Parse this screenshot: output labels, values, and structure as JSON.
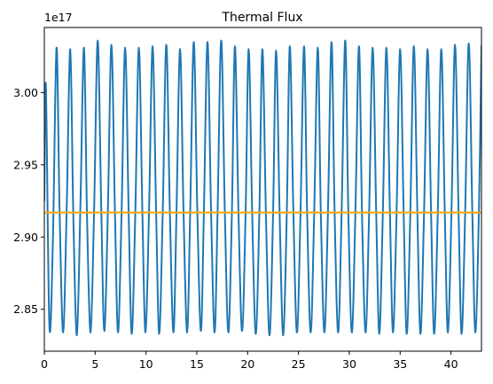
{
  "chart_data": {
    "type": "line",
    "title": "Thermal Flux",
    "xlabel": "",
    "ylabel": "",
    "y_offset_label": "1e17",
    "xlim": [
      0,
      43
    ],
    "ylim": [
      2.821,
      3.045
    ],
    "x_ticks": [
      0,
      5,
      10,
      15,
      20,
      25,
      30,
      35,
      40
    ],
    "x_tick_labels": [
      "0",
      "5",
      "10",
      "15",
      "20",
      "25",
      "30",
      "35",
      "40"
    ],
    "y_ticks": [
      2.85,
      2.9,
      2.95,
      3.0
    ],
    "y_tick_labels": [
      "2.85",
      "2.90",
      "2.95",
      "3.00"
    ],
    "grid": false,
    "series": [
      {
        "color": "#1f77b4",
        "x": [
          0.0,
          0.15,
          0.5,
          0.85,
          1.2,
          1.5,
          1.85,
          2.2,
          2.55,
          2.85,
          3.2,
          3.55,
          3.9,
          4.2,
          4.55,
          4.9,
          5.25,
          5.6,
          5.9,
          6.25,
          6.6,
          6.95,
          7.25,
          7.6,
          7.95,
          8.3,
          8.6,
          8.95,
          9.3,
          9.65,
          9.95,
          10.3,
          10.65,
          11.0,
          11.3,
          11.65,
          12.0,
          12.35,
          12.7,
          13.0,
          13.35,
          13.7,
          14.05,
          14.35,
          14.7,
          15.05,
          15.4,
          15.7,
          16.05,
          16.4,
          16.75,
          17.05,
          17.4,
          17.75,
          18.1,
          18.45,
          18.75,
          19.1,
          19.45,
          19.8,
          20.1,
          20.45,
          20.8,
          21.15,
          21.45,
          21.8,
          22.15,
          22.5,
          22.8,
          23.15,
          23.5,
          23.85,
          24.15,
          24.5,
          24.85,
          25.2,
          25.55,
          25.85,
          26.2,
          26.55,
          26.9,
          27.2,
          27.55,
          27.9,
          28.25,
          28.55,
          28.9,
          29.25,
          29.6,
          29.9,
          30.25,
          30.6,
          30.95,
          31.25,
          31.6,
          31.95,
          32.3,
          32.65,
          32.95,
          33.3,
          33.65,
          34.0,
          34.3,
          34.65,
          35.0,
          35.35,
          35.65,
          36.0,
          36.35,
          36.7,
          37.0,
          37.35,
          37.7,
          38.05,
          38.35,
          38.7,
          39.05,
          39.4,
          39.7,
          40.05,
          40.4,
          40.75,
          41.05,
          41.4,
          41.75,
          42.1,
          42.4,
          42.75,
          43.0
        ],
        "y": [
          2.925,
          3.005,
          2.838,
          2.9,
          3.031,
          2.918,
          2.834,
          2.92,
          3.03,
          2.915,
          2.832,
          2.922,
          3.031,
          2.914,
          2.834,
          2.92,
          3.036,
          2.92,
          2.835,
          2.918,
          3.033,
          2.916,
          2.834,
          2.917,
          3.031,
          2.915,
          2.833,
          2.917,
          3.031,
          2.915,
          2.834,
          2.918,
          3.032,
          2.916,
          2.833,
          2.918,
          3.033,
          2.917,
          2.834,
          2.917,
          3.03,
          2.915,
          2.834,
          2.918,
          3.035,
          2.918,
          2.835,
          2.919,
          3.035,
          2.918,
          2.834,
          2.92,
          3.036,
          2.919,
          2.834,
          2.917,
          3.032,
          2.916,
          2.835,
          2.917,
          3.03,
          2.915,
          2.833,
          2.916,
          3.03,
          2.915,
          2.832,
          2.916,
          3.029,
          2.914,
          2.832,
          2.917,
          3.032,
          2.916,
          2.834,
          2.917,
          3.032,
          2.917,
          2.834,
          2.918,
          3.031,
          2.916,
          2.834,
          2.918,
          3.035,
          2.918,
          2.834,
          2.919,
          3.036,
          2.918,
          2.834,
          2.917,
          3.032,
          2.916,
          2.834,
          2.917,
          3.031,
          2.915,
          2.833,
          2.917,
          3.031,
          2.915,
          2.834,
          2.917,
          3.03,
          2.915,
          2.833,
          2.916,
          3.032,
          2.915,
          2.833,
          2.916,
          3.03,
          2.914,
          2.833,
          2.916,
          3.03,
          2.914,
          2.834,
          2.918,
          3.033,
          2.916,
          2.833,
          2.918,
          3.034,
          2.917,
          2.834,
          2.918,
          3.033
        ]
      },
      {
        "color": "#ffa500",
        "x": [
          0,
          43
        ],
        "y": [
          2.917,
          2.917
        ]
      }
    ]
  }
}
